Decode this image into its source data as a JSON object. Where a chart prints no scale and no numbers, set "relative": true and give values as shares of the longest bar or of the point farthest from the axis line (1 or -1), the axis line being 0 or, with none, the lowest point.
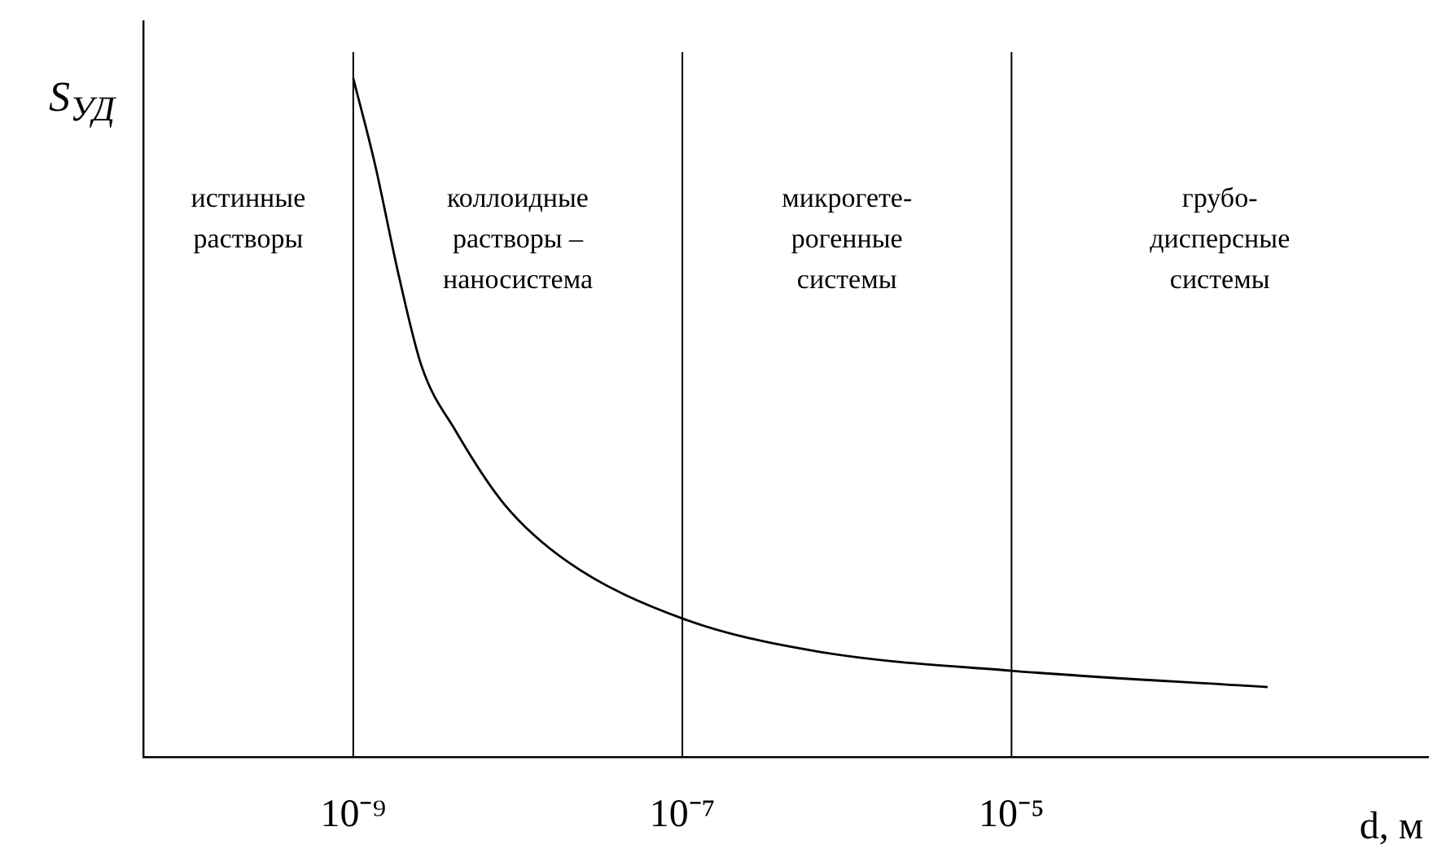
{
  "chart_data": {
    "type": "line",
    "relative": true,
    "log": "x",
    "xlabel": "d, м",
    "ylabel": "S$_{УД}$",
    "xlim": [
      5.3e-11,
      0.0034
    ],
    "xticks": [
      {
        "value": 1e-09,
        "label": "10⁻⁹"
      },
      {
        "value": 1e-07,
        "label": "10⁻⁷"
      },
      {
        "value": 1e-05,
        "label": "10⁻⁵"
      }
    ],
    "x": [
      1e-09,
      1.35e-09,
      1.9e-09,
      2.6e-09,
      4.2e-09,
      8.3e-09,
      2e-08,
      1e-07,
      6.4e-07,
      1e-05,
      0.00036
    ],
    "series": [
      {
        "color": "#000000",
        "values": [
          1,
          0.875,
          0.707,
          0.576,
          0.48,
          0.372,
          0.288,
          0.204,
          0.156,
          0.127,
          0.103
        ]
      }
    ],
    "ref_lines": [
      {
        "axis": "x",
        "value": 1e-09,
        "color": "#000000"
      },
      {
        "axis": "x",
        "value": 1e-07,
        "color": "#000000"
      },
      {
        "axis": "x",
        "value": 1e-05,
        "color": "#000000"
      }
    ],
    "annotations": [
      "истинные\nрастворы",
      "коллоидные\nрастворы –\nнаносистема",
      "микрогете-\nрогенные\nсистемы",
      "грубо-\nдисперсные\nсистемы"
    ],
    "grid": false,
    "legend": false,
    "marker": "none",
    "line_style": "solid"
  }
}
